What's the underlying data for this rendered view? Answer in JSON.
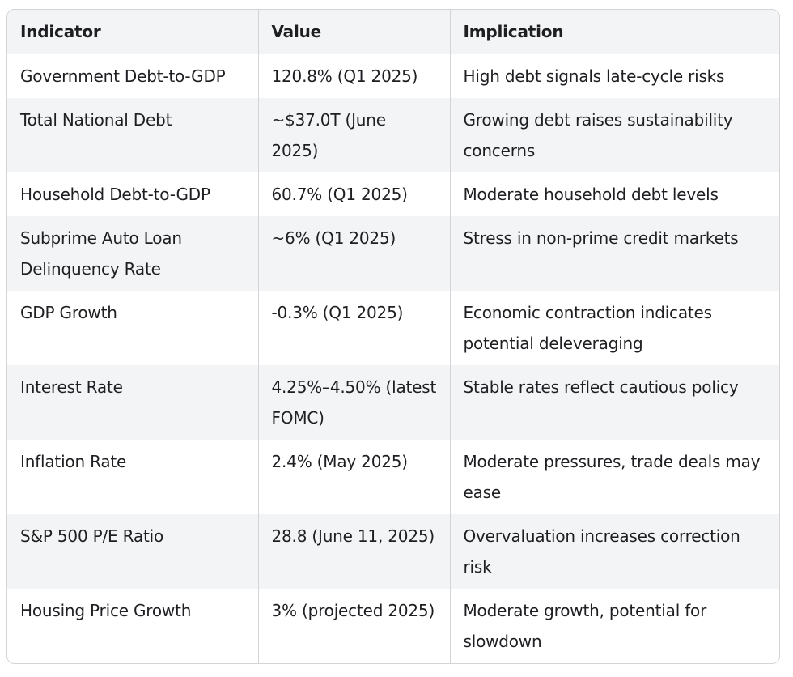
{
  "table": {
    "headers": [
      "Indicator",
      "Value",
      "Implication"
    ],
    "rows": [
      [
        "Government Debt-to-GDP",
        "120.8% (Q1 2025)",
        "High debt signals late-cycle risks"
      ],
      [
        "Total National Debt",
        "~$37.0T (June 2025)",
        "Growing debt raises sustainability concerns"
      ],
      [
        "Household Debt-to-GDP",
        "60.7% (Q1 2025)",
        "Moderate household debt levels"
      ],
      [
        "Subprime Auto Loan Delinquency Rate",
        "~6% (Q1 2025)",
        "Stress in non-prime credit markets"
      ],
      [
        "GDP Growth",
        "-0.3% (Q1 2025)",
        "Economic contraction indicates potential deleveraging"
      ],
      [
        "Interest Rate",
        "4.25%–4.50% (latest FOMC)",
        "Stable rates reflect cautious policy"
      ],
      [
        "Inflation Rate",
        "2.4% (May 2025)",
        "Moderate pressures, trade deals may ease"
      ],
      [
        "S&P 500 P/E Ratio",
        "28.8 (June 11, 2025)",
        "Overvaluation increases correction risk"
      ],
      [
        "Housing Price Growth",
        "3% (projected 2025)",
        "Moderate growth, potential for slowdown"
      ]
    ]
  }
}
